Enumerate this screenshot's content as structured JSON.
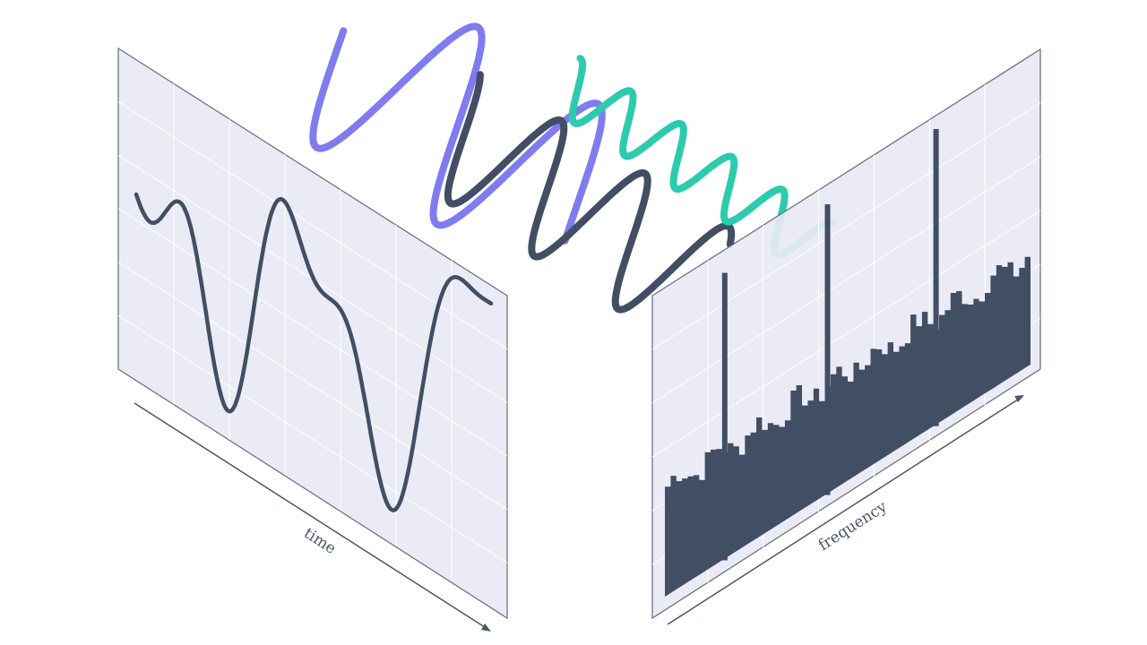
{
  "axis_labels": {
    "time": "time",
    "frequency": "frequency"
  },
  "colors": {
    "panel_fill": "#e8e9f4",
    "panel_border": "#6c7385",
    "panel_grid": "#ffffff",
    "signal": "#414e63",
    "wave_purple": "#7f7cf0",
    "wave_dark": "#414e63",
    "wave_teal": "#2ccbad",
    "spectrum": "#414e63",
    "axis": "#4a5668"
  },
  "spectrum": {
    "bar_count": 64,
    "peaks": [
      {
        "bin": 10,
        "height": 0.95
      },
      {
        "bin": 28,
        "height": 0.96
      },
      {
        "bin": 47,
        "height": 0.98
      }
    ]
  }
}
